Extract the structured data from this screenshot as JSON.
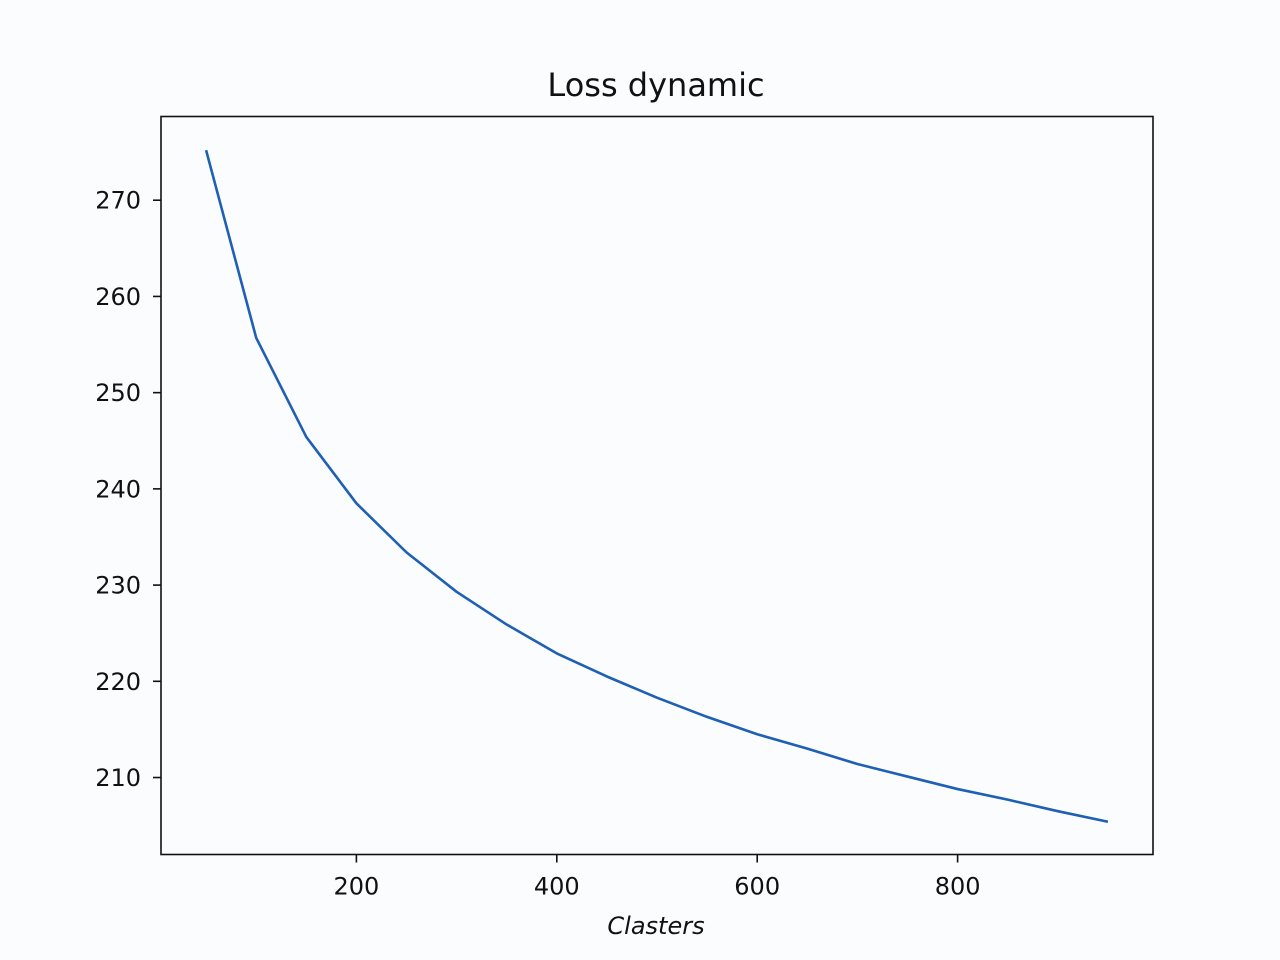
{
  "chart_data": {
    "type": "line",
    "title": "Loss dynamic",
    "xlabel": "Clasters",
    "ylabel": "",
    "xlim": [
      5,
      995
    ],
    "ylim": [
      202.0,
      278.7
    ],
    "xticks": [
      200,
      400,
      600,
      800
    ],
    "yticks": [
      210,
      220,
      230,
      240,
      250,
      260,
      270
    ],
    "grid": false,
    "series": [
      {
        "color": "#1f5fb4",
        "x": [
          50,
          100,
          150,
          200,
          250,
          300,
          350,
          400,
          450,
          500,
          550,
          600,
          650,
          700,
          750,
          800,
          850,
          900,
          950
        ],
        "y": [
          275.2,
          255.7,
          245.4,
          238.5,
          233.4,
          229.3,
          225.9,
          222.9,
          220.5,
          218.3,
          216.3,
          214.5,
          213.0,
          211.4,
          210.1,
          208.8,
          207.7,
          206.5,
          205.4
        ]
      }
    ]
  }
}
